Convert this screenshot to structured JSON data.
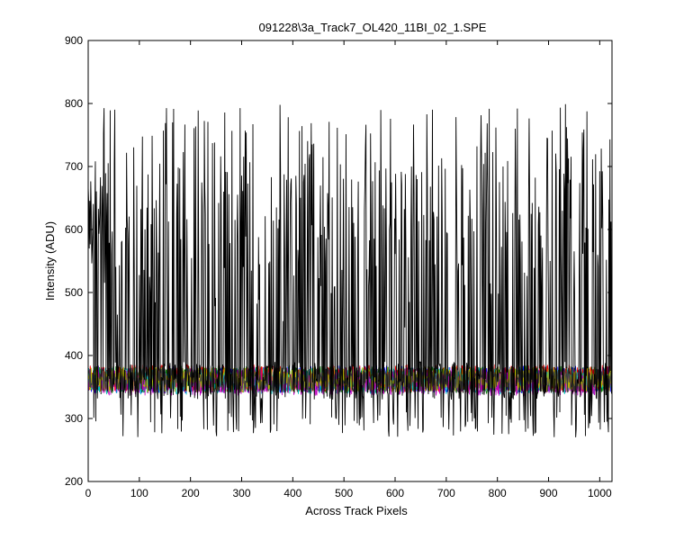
{
  "chart_data": {
    "type": "line",
    "title": "091228\\3a_Track7_OL420_11BI_02_1.SPE",
    "xlabel": "Across Track Pixels",
    "ylabel": "Intensity (ADU)",
    "xlim": [
      0,
      1024
    ],
    "ylim": [
      200,
      900
    ],
    "xticks": [
      "0",
      "100",
      "200",
      "300",
      "400",
      "500",
      "600",
      "700",
      "800",
      "900",
      "1000"
    ],
    "yticks": [
      "200",
      "300",
      "400",
      "500",
      "600",
      "700",
      "800",
      "900"
    ],
    "grid": false,
    "legend": "none",
    "n_points": 1024,
    "series": [
      {
        "color": "#000000",
        "style": "spiky",
        "baseline": 360,
        "low": 270,
        "high": 800
      },
      {
        "color": "#0000ff",
        "style": "noise",
        "baseline": 362,
        "spread": 22
      },
      {
        "color": "#008000",
        "style": "noise",
        "baseline": 362,
        "spread": 22
      },
      {
        "color": "#ff0000",
        "style": "noise",
        "baseline": 364,
        "spread": 22
      },
      {
        "color": "#00bfbf",
        "style": "noise",
        "baseline": 360,
        "spread": 22
      },
      {
        "color": "#bf00bf",
        "style": "noise",
        "baseline": 358,
        "spread": 22
      },
      {
        "color": "#bfbf00",
        "style": "noise",
        "baseline": 362,
        "spread": 20
      },
      {
        "color": "#404040",
        "style": "noise",
        "baseline": 361,
        "spread": 20
      }
    ]
  }
}
